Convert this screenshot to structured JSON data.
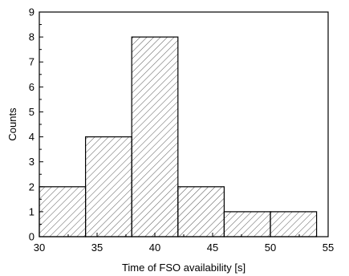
{
  "chart_data": {
    "type": "bar",
    "xlabel": "Time of FSO availability [s]",
    "ylabel": "Counts",
    "xlim": [
      30,
      55
    ],
    "ylim": [
      0,
      9
    ],
    "x_ticks": [
      "30",
      "35",
      "40",
      "45",
      "50",
      "55"
    ],
    "y_ticks": [
      "0",
      "1",
      "2",
      "3",
      "4",
      "5",
      "6",
      "7",
      "8",
      "9"
    ],
    "bins": [
      {
        "start": 30,
        "end": 34,
        "count": 2
      },
      {
        "start": 34,
        "end": 38,
        "count": 4
      },
      {
        "start": 38,
        "end": 42,
        "count": 8
      },
      {
        "start": 42,
        "end": 46,
        "count": 2
      },
      {
        "start": 46,
        "end": 50,
        "count": 1
      },
      {
        "start": 50,
        "end": 54,
        "count": 1
      }
    ],
    "bar_fill": "hatched",
    "grid": false,
    "legend": "none"
  }
}
